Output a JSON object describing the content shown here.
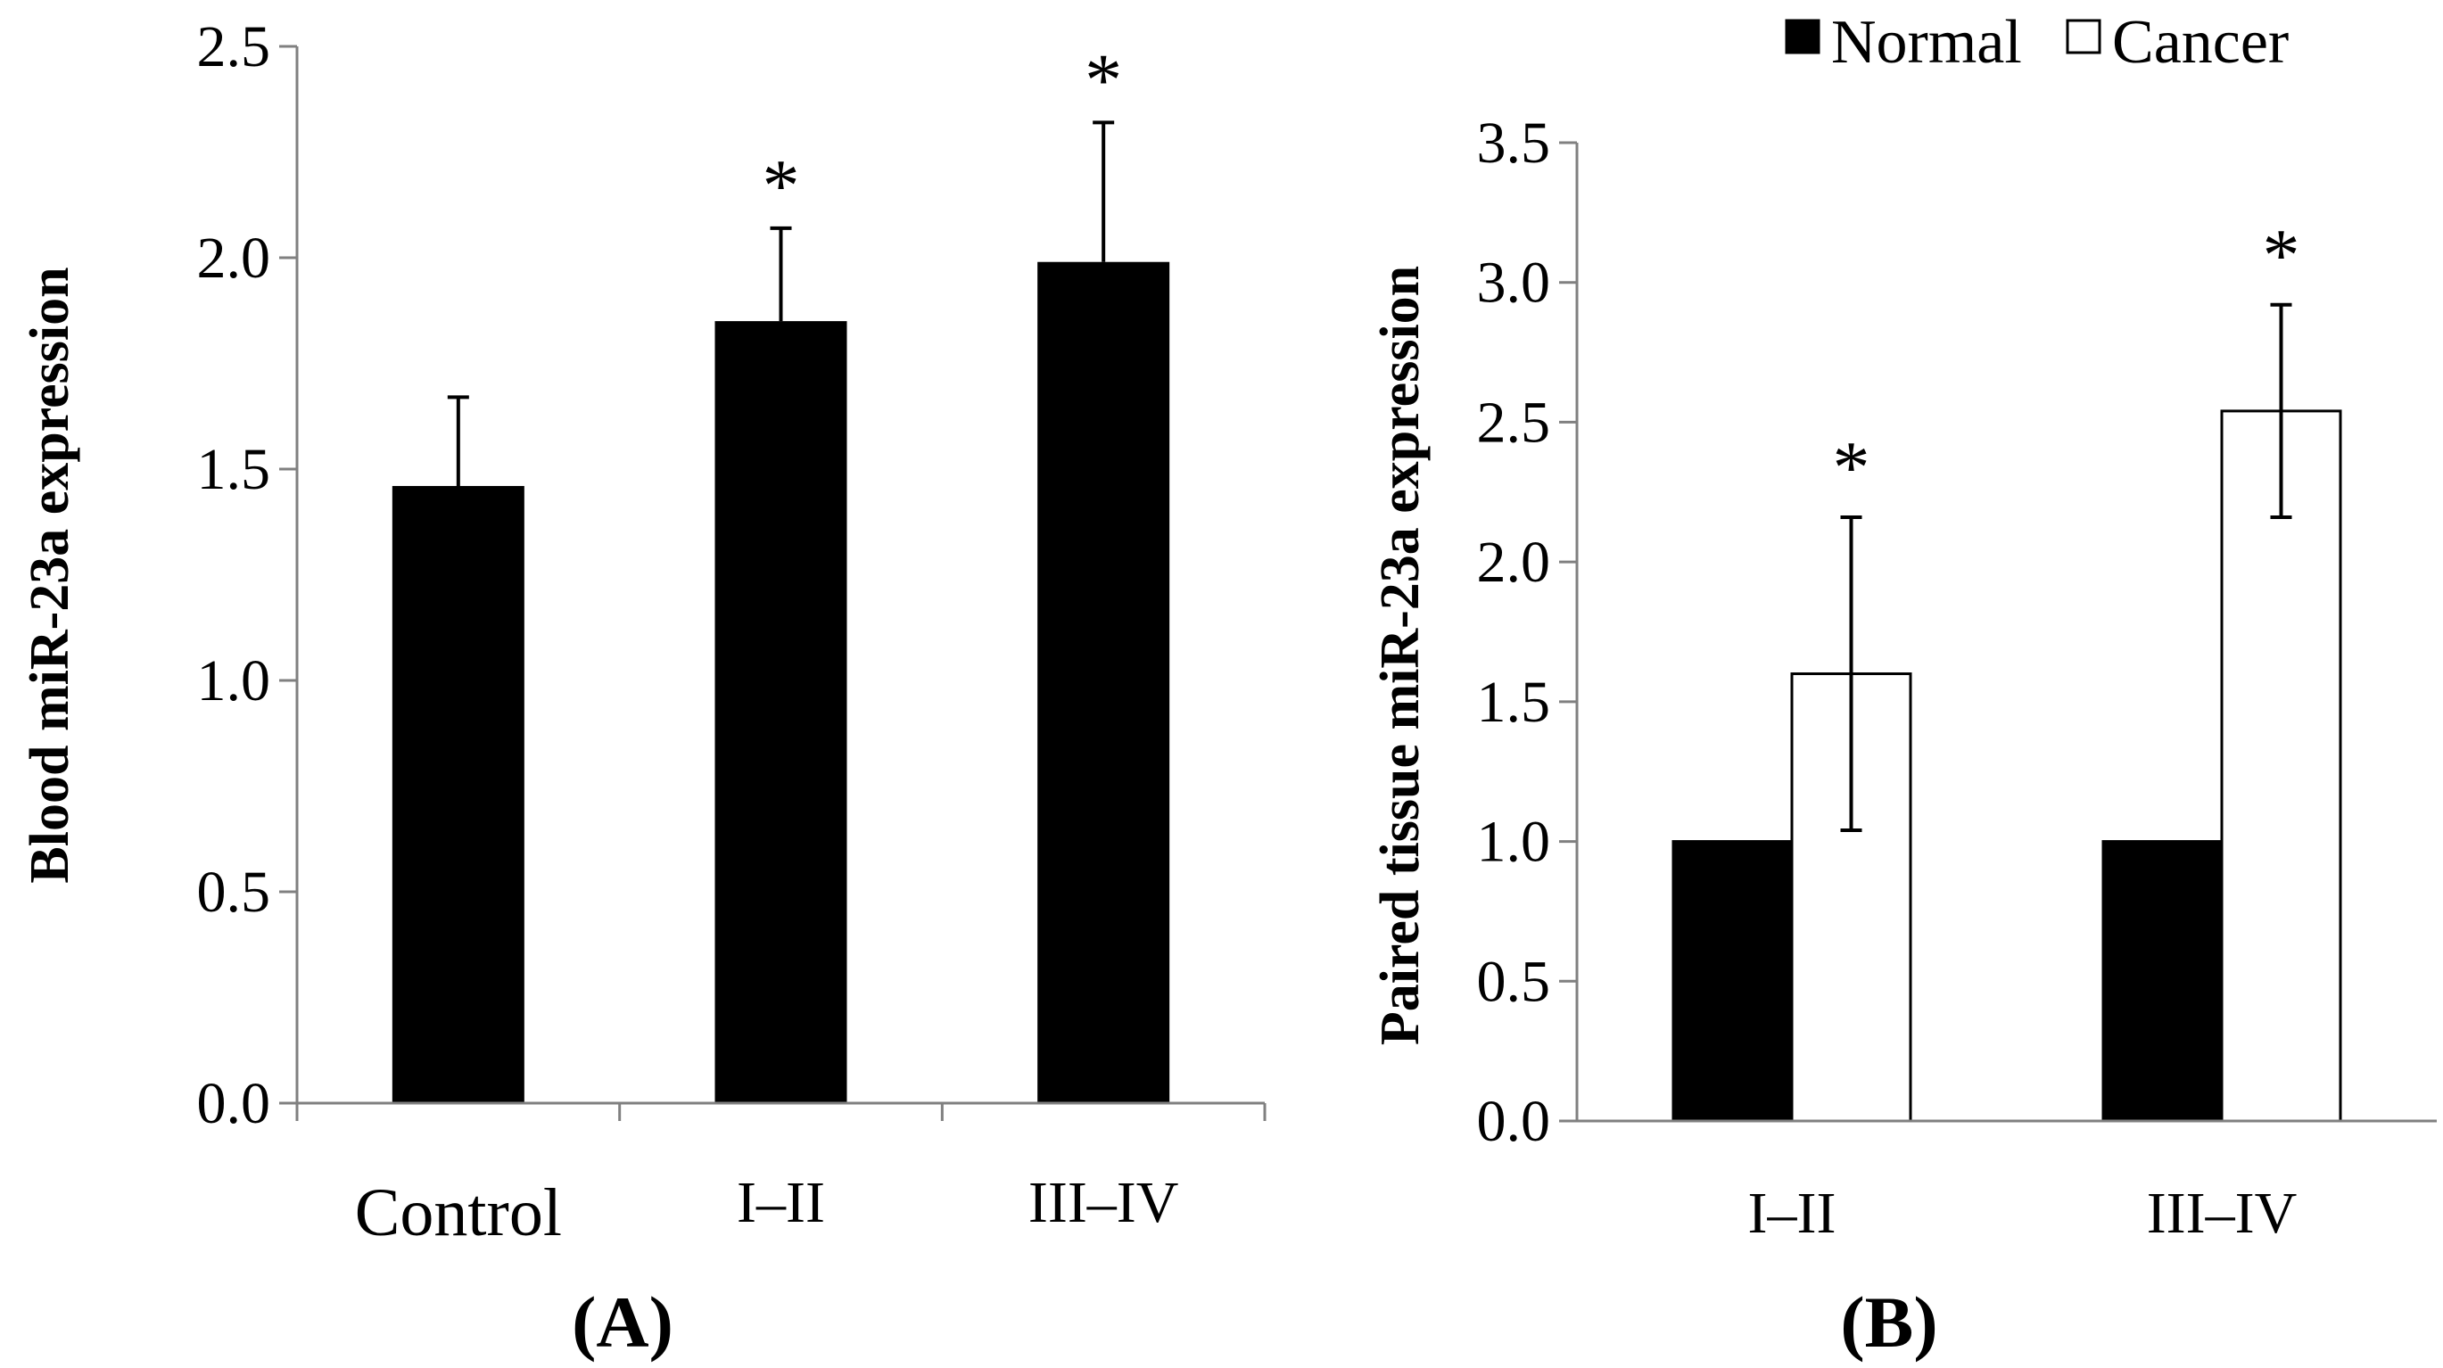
{
  "chart_data": [
    {
      "panel_label": "(A)",
      "type": "bar",
      "title": "",
      "xlabel": "",
      "ylabel": "Blood miR-23a expression",
      "ylim": [
        0,
        2.5
      ],
      "yticks": [
        "0.0",
        "0.5",
        "1.0",
        "1.5",
        "2.0",
        "2.5"
      ],
      "categories": [
        "Control",
        "I–II",
        "III–IV"
      ],
      "values": [
        1.46,
        1.85,
        1.99
      ],
      "errors": [
        0.21,
        0.22,
        0.33
      ],
      "significance": [
        "",
        "*",
        "*"
      ],
      "color": "#000000",
      "grid": false
    },
    {
      "panel_label": "(B)",
      "type": "bar",
      "title": "",
      "xlabel": "",
      "ylabel": "Paired tissue miR-23a expression",
      "ylim": [
        0,
        3.5
      ],
      "yticks": [
        "0.0",
        "0.5",
        "1.0",
        "1.5",
        "2.0",
        "2.5",
        "3.0",
        "3.5"
      ],
      "categories": [
        "I–II",
        "III–IV"
      ],
      "legend": {
        "position": "top-right",
        "entries": [
          "Normal",
          "Cancer"
        ]
      },
      "series": [
        {
          "name": "Normal",
          "values": [
            1.0,
            1.0
          ],
          "errors": [
            0,
            0
          ],
          "fill": "#000000"
        },
        {
          "name": "Cancer",
          "values": [
            1.6,
            2.54
          ],
          "errors": [
            0.56,
            0.38
          ],
          "fill": "#ffffff"
        }
      ],
      "significance": [
        "*",
        "*"
      ],
      "grid": false
    }
  ]
}
